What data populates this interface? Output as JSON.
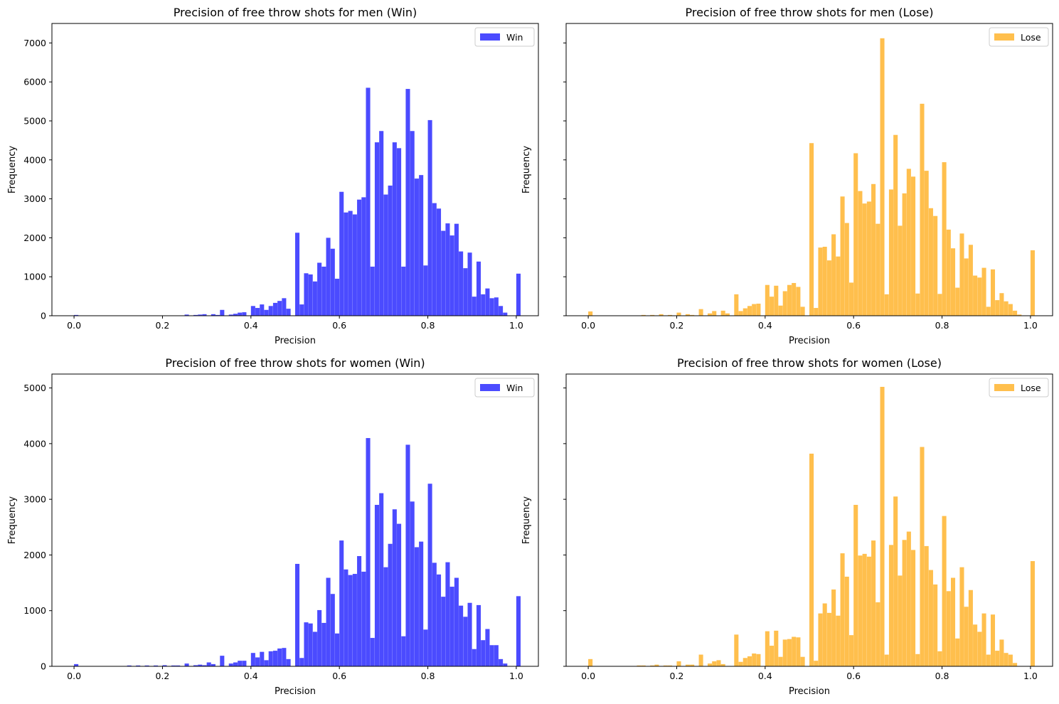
{
  "figure": {
    "bin_width": 0.01,
    "series_colors": {
      "Win": "#4b4bff",
      "Lose": "#ffbf4d"
    }
  },
  "chart_data": [
    {
      "type": "bar",
      "title": "Precision of free throw shots for men (Win)",
      "xlabel": "Precision",
      "ylabel": "Frequency",
      "xlim": [
        -0.05,
        1.05
      ],
      "ylim": [
        0,
        7500
      ],
      "xticks": [
        "0.0",
        "0.2",
        "0.4",
        "0.6",
        "0.8",
        "1.0"
      ],
      "yticks": [
        "0",
        "1000",
        "2000",
        "3000",
        "4000",
        "5000",
        "6000",
        "7000"
      ],
      "show_ytick_labels": true,
      "legend": {
        "label": "Win",
        "position": "top-right"
      },
      "bins": [
        [
          0.0,
          20
        ],
        [
          0.25,
          30
        ],
        [
          0.27,
          20
        ],
        [
          0.28,
          30
        ],
        [
          0.29,
          40
        ],
        [
          0.31,
          40
        ],
        [
          0.32,
          20
        ],
        [
          0.33,
          150
        ],
        [
          0.35,
          30
        ],
        [
          0.36,
          50
        ],
        [
          0.37,
          80
        ],
        [
          0.38,
          90
        ],
        [
          0.4,
          250
        ],
        [
          0.41,
          200
        ],
        [
          0.42,
          290
        ],
        [
          0.43,
          150
        ],
        [
          0.44,
          250
        ],
        [
          0.45,
          330
        ],
        [
          0.46,
          380
        ],
        [
          0.47,
          450
        ],
        [
          0.48,
          180
        ],
        [
          0.5,
          2130
        ],
        [
          0.51,
          290
        ],
        [
          0.52,
          1090
        ],
        [
          0.53,
          1060
        ],
        [
          0.54,
          880
        ],
        [
          0.55,
          1360
        ],
        [
          0.56,
          1260
        ],
        [
          0.57,
          2000
        ],
        [
          0.58,
          1720
        ],
        [
          0.59,
          950
        ],
        [
          0.6,
          3180
        ],
        [
          0.61,
          2650
        ],
        [
          0.62,
          2690
        ],
        [
          0.63,
          2600
        ],
        [
          0.64,
          2980
        ],
        [
          0.65,
          3040
        ],
        [
          0.66,
          5850
        ],
        [
          0.67,
          1260
        ],
        [
          0.68,
          4450
        ],
        [
          0.69,
          4740
        ],
        [
          0.7,
          3110
        ],
        [
          0.71,
          3340
        ],
        [
          0.72,
          4450
        ],
        [
          0.73,
          4300
        ],
        [
          0.74,
          1260
        ],
        [
          0.75,
          5820
        ],
        [
          0.76,
          4740
        ],
        [
          0.77,
          3520
        ],
        [
          0.78,
          3610
        ],
        [
          0.79,
          1290
        ],
        [
          0.8,
          5020
        ],
        [
          0.81,
          2890
        ],
        [
          0.82,
          2750
        ],
        [
          0.83,
          2180
        ],
        [
          0.84,
          2370
        ],
        [
          0.85,
          2060
        ],
        [
          0.86,
          2360
        ],
        [
          0.87,
          1650
        ],
        [
          0.88,
          1220
        ],
        [
          0.89,
          1620
        ],
        [
          0.9,
          490
        ],
        [
          0.91,
          1390
        ],
        [
          0.92,
          550
        ],
        [
          0.93,
          700
        ],
        [
          0.94,
          450
        ],
        [
          0.95,
          470
        ],
        [
          0.96,
          250
        ],
        [
          0.97,
          80
        ],
        [
          1.0,
          1080
        ]
      ]
    },
    {
      "type": "bar",
      "title": "Precision of free throw shots for men (Lose)",
      "xlabel": "Precision",
      "ylabel": "Frequency",
      "xlim": [
        -0.05,
        1.05
      ],
      "ylim": [
        0,
        7500
      ],
      "xticks": [
        "0.0",
        "0.2",
        "0.4",
        "0.6",
        "0.8",
        "1.0"
      ],
      "yticks": [
        "0",
        "1000",
        "2000",
        "3000",
        "4000",
        "5000",
        "6000",
        "7000"
      ],
      "show_ytick_labels": false,
      "legend": {
        "label": "Lose",
        "position": "top-right"
      },
      "bins": [
        [
          0.0,
          110
        ],
        [
          0.12,
          20
        ],
        [
          0.14,
          20
        ],
        [
          0.16,
          40
        ],
        [
          0.18,
          20
        ],
        [
          0.2,
          80
        ],
        [
          0.22,
          40
        ],
        [
          0.23,
          20
        ],
        [
          0.25,
          170
        ],
        [
          0.27,
          60
        ],
        [
          0.28,
          120
        ],
        [
          0.3,
          130
        ],
        [
          0.31,
          60
        ],
        [
          0.33,
          550
        ],
        [
          0.34,
          120
        ],
        [
          0.35,
          190
        ],
        [
          0.36,
          250
        ],
        [
          0.37,
          300
        ],
        [
          0.38,
          310
        ],
        [
          0.4,
          790
        ],
        [
          0.41,
          490
        ],
        [
          0.42,
          770
        ],
        [
          0.43,
          260
        ],
        [
          0.44,
          630
        ],
        [
          0.45,
          790
        ],
        [
          0.46,
          840
        ],
        [
          0.47,
          740
        ],
        [
          0.48,
          230
        ],
        [
          0.5,
          4430
        ],
        [
          0.51,
          200
        ],
        [
          0.52,
          1750
        ],
        [
          0.53,
          1770
        ],
        [
          0.54,
          1420
        ],
        [
          0.55,
          2090
        ],
        [
          0.56,
          1520
        ],
        [
          0.57,
          3060
        ],
        [
          0.58,
          2380
        ],
        [
          0.59,
          850
        ],
        [
          0.6,
          4170
        ],
        [
          0.61,
          3200
        ],
        [
          0.62,
          2880
        ],
        [
          0.63,
          2930
        ],
        [
          0.64,
          3380
        ],
        [
          0.65,
          2360
        ],
        [
          0.66,
          7120
        ],
        [
          0.67,
          550
        ],
        [
          0.68,
          3240
        ],
        [
          0.69,
          4640
        ],
        [
          0.7,
          2310
        ],
        [
          0.71,
          3140
        ],
        [
          0.72,
          3770
        ],
        [
          0.73,
          3570
        ],
        [
          0.74,
          570
        ],
        [
          0.75,
          5440
        ],
        [
          0.76,
          3720
        ],
        [
          0.77,
          2760
        ],
        [
          0.78,
          2560
        ],
        [
          0.79,
          560
        ],
        [
          0.8,
          3940
        ],
        [
          0.81,
          2210
        ],
        [
          0.82,
          1730
        ],
        [
          0.83,
          720
        ],
        [
          0.84,
          2110
        ],
        [
          0.85,
          1470
        ],
        [
          0.86,
          1820
        ],
        [
          0.87,
          1030
        ],
        [
          0.88,
          980
        ],
        [
          0.89,
          1230
        ],
        [
          0.9,
          230
        ],
        [
          0.91,
          1190
        ],
        [
          0.92,
          400
        ],
        [
          0.93,
          580
        ],
        [
          0.94,
          370
        ],
        [
          0.95,
          300
        ],
        [
          0.96,
          130
        ],
        [
          0.97,
          30
        ],
        [
          1.0,
          1680
        ]
      ]
    },
    {
      "type": "bar",
      "title": "Precision of free throw shots for women (Win)",
      "xlabel": "Precision",
      "ylabel": "Frequency",
      "xlim": [
        -0.05,
        1.05
      ],
      "ylim": [
        0,
        5250
      ],
      "xticks": [
        "0.0",
        "0.2",
        "0.4",
        "0.6",
        "0.8",
        "1.0"
      ],
      "yticks": [
        "0",
        "1000",
        "2000",
        "3000",
        "4000",
        "5000"
      ],
      "show_ytick_labels": true,
      "legend": {
        "label": "Win",
        "position": "top-right"
      },
      "bins": [
        [
          0.0,
          40
        ],
        [
          0.12,
          15
        ],
        [
          0.14,
          15
        ],
        [
          0.16,
          15
        ],
        [
          0.18,
          15
        ],
        [
          0.2,
          20
        ],
        [
          0.22,
          15
        ],
        [
          0.23,
          15
        ],
        [
          0.25,
          50
        ],
        [
          0.27,
          20
        ],
        [
          0.28,
          30
        ],
        [
          0.29,
          20
        ],
        [
          0.3,
          70
        ],
        [
          0.31,
          40
        ],
        [
          0.33,
          190
        ],
        [
          0.35,
          50
        ],
        [
          0.36,
          70
        ],
        [
          0.37,
          100
        ],
        [
          0.38,
          100
        ],
        [
          0.4,
          240
        ],
        [
          0.41,
          160
        ],
        [
          0.42,
          260
        ],
        [
          0.43,
          110
        ],
        [
          0.44,
          270
        ],
        [
          0.45,
          280
        ],
        [
          0.46,
          320
        ],
        [
          0.47,
          330
        ],
        [
          0.48,
          130
        ],
        [
          0.5,
          1840
        ],
        [
          0.51,
          150
        ],
        [
          0.52,
          790
        ],
        [
          0.53,
          770
        ],
        [
          0.54,
          620
        ],
        [
          0.55,
          1010
        ],
        [
          0.56,
          780
        ],
        [
          0.57,
          1590
        ],
        [
          0.58,
          1300
        ],
        [
          0.59,
          590
        ],
        [
          0.6,
          2260
        ],
        [
          0.61,
          1740
        ],
        [
          0.62,
          1640
        ],
        [
          0.63,
          1660
        ],
        [
          0.64,
          1980
        ],
        [
          0.65,
          1700
        ],
        [
          0.66,
          4100
        ],
        [
          0.67,
          510
        ],
        [
          0.68,
          2900
        ],
        [
          0.69,
          3110
        ],
        [
          0.7,
          1780
        ],
        [
          0.71,
          2200
        ],
        [
          0.72,
          2820
        ],
        [
          0.73,
          2560
        ],
        [
          0.74,
          540
        ],
        [
          0.75,
          3980
        ],
        [
          0.76,
          2960
        ],
        [
          0.77,
          2140
        ],
        [
          0.78,
          2240
        ],
        [
          0.79,
          660
        ],
        [
          0.8,
          3280
        ],
        [
          0.81,
          1860
        ],
        [
          0.82,
          1650
        ],
        [
          0.83,
          1250
        ],
        [
          0.84,
          1870
        ],
        [
          0.85,
          1430
        ],
        [
          0.86,
          1590
        ],
        [
          0.87,
          1090
        ],
        [
          0.88,
          890
        ],
        [
          0.89,
          1140
        ],
        [
          0.9,
          310
        ],
        [
          0.91,
          1100
        ],
        [
          0.92,
          470
        ],
        [
          0.93,
          670
        ],
        [
          0.94,
          380
        ],
        [
          0.95,
          380
        ],
        [
          0.96,
          130
        ],
        [
          0.97,
          50
        ],
        [
          1.0,
          1260
        ]
      ]
    },
    {
      "type": "bar",
      "title": "Precision of free throw shots for women (Lose)",
      "xlabel": "Precision",
      "ylabel": "Frequency",
      "xlim": [
        -0.05,
        1.05
      ],
      "ylim": [
        0,
        5250
      ],
      "xticks": [
        "0.0",
        "0.2",
        "0.4",
        "0.6",
        "0.8",
        "1.0"
      ],
      "yticks": [
        "0",
        "1000",
        "2000",
        "3000",
        "4000",
        "5000"
      ],
      "show_ytick_labels": false,
      "legend": {
        "label": "Lose",
        "position": "top-right"
      },
      "bins": [
        [
          0.0,
          130
        ],
        [
          0.11,
          15
        ],
        [
          0.12,
          15
        ],
        [
          0.14,
          15
        ],
        [
          0.15,
          30
        ],
        [
          0.17,
          15
        ],
        [
          0.18,
          15
        ],
        [
          0.2,
          90
        ],
        [
          0.22,
          30
        ],
        [
          0.23,
          30
        ],
        [
          0.25,
          210
        ],
        [
          0.27,
          50
        ],
        [
          0.28,
          90
        ],
        [
          0.29,
          110
        ],
        [
          0.3,
          40
        ],
        [
          0.33,
          570
        ],
        [
          0.34,
          80
        ],
        [
          0.35,
          150
        ],
        [
          0.36,
          180
        ],
        [
          0.37,
          230
        ],
        [
          0.38,
          220
        ],
        [
          0.4,
          630
        ],
        [
          0.41,
          370
        ],
        [
          0.42,
          640
        ],
        [
          0.43,
          170
        ],
        [
          0.44,
          480
        ],
        [
          0.45,
          490
        ],
        [
          0.46,
          530
        ],
        [
          0.47,
          520
        ],
        [
          0.48,
          170
        ],
        [
          0.5,
          3820
        ],
        [
          0.51,
          100
        ],
        [
          0.52,
          950
        ],
        [
          0.53,
          1130
        ],
        [
          0.54,
          960
        ],
        [
          0.55,
          1380
        ],
        [
          0.56,
          910
        ],
        [
          0.57,
          2030
        ],
        [
          0.58,
          1610
        ],
        [
          0.59,
          560
        ],
        [
          0.6,
          2900
        ],
        [
          0.61,
          1990
        ],
        [
          0.62,
          2020
        ],
        [
          0.63,
          1970
        ],
        [
          0.64,
          2260
        ],
        [
          0.65,
          1150
        ],
        [
          0.66,
          5020
        ],
        [
          0.67,
          210
        ],
        [
          0.68,
          2180
        ],
        [
          0.69,
          3050
        ],
        [
          0.7,
          1630
        ],
        [
          0.71,
          2270
        ],
        [
          0.72,
          2420
        ],
        [
          0.73,
          2090
        ],
        [
          0.74,
          220
        ],
        [
          0.75,
          3940
        ],
        [
          0.76,
          2160
        ],
        [
          0.77,
          1730
        ],
        [
          0.78,
          1470
        ],
        [
          0.79,
          270
        ],
        [
          0.8,
          2700
        ],
        [
          0.81,
          1350
        ],
        [
          0.82,
          1590
        ],
        [
          0.83,
          500
        ],
        [
          0.84,
          1780
        ],
        [
          0.85,
          1070
        ],
        [
          0.86,
          1370
        ],
        [
          0.87,
          750
        ],
        [
          0.88,
          620
        ],
        [
          0.89,
          950
        ],
        [
          0.9,
          210
        ],
        [
          0.91,
          930
        ],
        [
          0.92,
          280
        ],
        [
          0.93,
          480
        ],
        [
          0.94,
          240
        ],
        [
          0.95,
          210
        ],
        [
          0.96,
          60
        ],
        [
          1.0,
          1890
        ]
      ]
    }
  ]
}
